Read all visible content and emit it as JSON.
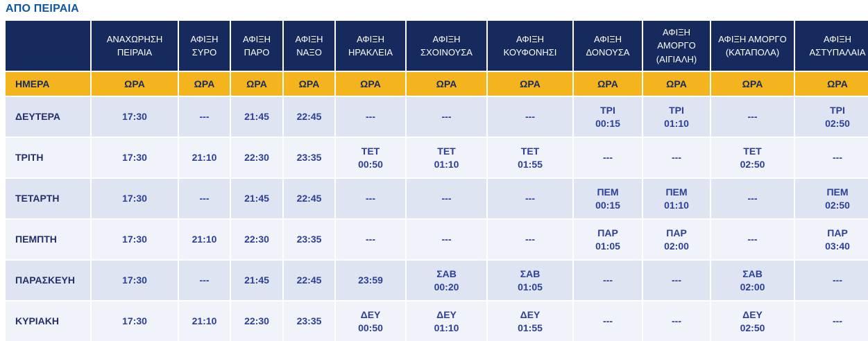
{
  "page": {
    "title": "ΑΠΟ ΠΕΙΡΑΙΑ"
  },
  "table": {
    "header": {
      "day_column_label": "ΗΜΕΡΑ",
      "time_label": "ΩΡΑ",
      "columns": [
        "ΑΝΑΧΩΡΗΣΗ ΠΕΙΡΑΙΑ",
        "ΑΦΙΞΗ ΣΥΡΟ",
        "ΑΦΙΞΗ ΠΑΡΟ",
        "ΑΦΙΞΗ ΝΑΞΟ",
        "ΑΦΙΞΗ ΗΡΑΚΛΕΙΑ",
        "ΑΦΙΞΗ ΣΧΟΙΝΟΥΣΑ",
        "ΑΦΙΞΗ ΚΟΥΦΟΝΗΣΙ",
        "ΑΦΙΞΗ ΔΟΝΟΥΣΑ",
        "ΑΦΙΞΗ ΑΜΟΡΓΟ (ΑΙΓΙΑΛΗ)",
        "ΑΦΙΞΗ ΑΜΟΡΓΟ (ΚΑΤΑΠΟΛΑ)",
        "ΑΦΙΞΗ ΑΣΤΥΠΑΛΑΙΑ"
      ]
    },
    "empty_value": "---",
    "rows": [
      {
        "day": "ΔΕΥΤΕΡΑ",
        "cells": [
          {
            "time": "17:30"
          },
          {
            "time": "---"
          },
          {
            "time": "21:45"
          },
          {
            "time": "22:45"
          },
          {
            "time": "---"
          },
          {
            "time": "---"
          },
          {
            "time": "---"
          },
          {
            "day": "ΤΡΙ",
            "time": "00:15"
          },
          {
            "day": "ΤΡΙ",
            "time": "01:10"
          },
          {
            "time": "---"
          },
          {
            "day": "ΤΡΙ",
            "time": "02:50"
          }
        ]
      },
      {
        "day": "ΤΡΙΤΗ",
        "cells": [
          {
            "time": "17:30"
          },
          {
            "time": "21:10"
          },
          {
            "time": "22:30"
          },
          {
            "time": "23:35"
          },
          {
            "day": "ΤΕΤ",
            "time": "00:50"
          },
          {
            "day": "ΤΕΤ",
            "time": "01:10"
          },
          {
            "day": "ΤΕΤ",
            "time": "01:55"
          },
          {
            "time": "---"
          },
          {
            "time": "---"
          },
          {
            "day": "ΤΕΤ",
            "time": "02:50"
          },
          {
            "time": "---"
          }
        ]
      },
      {
        "day": "ΤΕΤΑΡΤΗ",
        "cells": [
          {
            "time": "17:30"
          },
          {
            "time": "---"
          },
          {
            "time": "21:45"
          },
          {
            "time": "22:45"
          },
          {
            "time": "---"
          },
          {
            "time": "---"
          },
          {
            "time": "---"
          },
          {
            "day": "ΠΕΜ",
            "time": "00:15"
          },
          {
            "day": "ΠΕΜ",
            "time": "01:10"
          },
          {
            "time": "---"
          },
          {
            "day": "ΠΕΜ",
            "time": "02:50"
          }
        ]
      },
      {
        "day": "ΠΕΜΠΤΗ",
        "cells": [
          {
            "time": "17:30"
          },
          {
            "time": "21:10"
          },
          {
            "time": "22:30"
          },
          {
            "time": "23:35"
          },
          {
            "time": "---"
          },
          {
            "time": "---"
          },
          {
            "time": "---"
          },
          {
            "day": "ΠΑΡ",
            "time": "01:05"
          },
          {
            "day": "ΠΑΡ",
            "time": "02:00"
          },
          {
            "time": "---"
          },
          {
            "day": "ΠΑΡ",
            "time": "03:40"
          }
        ]
      },
      {
        "day": "ΠΑΡΑΣΚΕΥΗ",
        "cells": [
          {
            "time": "17:30"
          },
          {
            "time": "---"
          },
          {
            "time": "21:45"
          },
          {
            "time": "22:45"
          },
          {
            "time": "23:59"
          },
          {
            "day": "ΣΑΒ",
            "time": "00:20"
          },
          {
            "day": "ΣΑΒ",
            "time": "01:05"
          },
          {
            "time": "---"
          },
          {
            "time": "---"
          },
          {
            "day": "ΣΑΒ",
            "time": "02:00"
          },
          {
            "time": "---"
          }
        ]
      },
      {
        "day": "ΚΥΡΙΑΚΗ",
        "cells": [
          {
            "time": "17:30"
          },
          {
            "time": "21:10"
          },
          {
            "time": "22:30"
          },
          {
            "time": "23:35"
          },
          {
            "day": "ΔΕΥ",
            "time": "00:50"
          },
          {
            "day": "ΔΕΥ",
            "time": "01:10"
          },
          {
            "day": "ΔΕΥ",
            "time": "01:55"
          },
          {
            "time": "---"
          },
          {
            "time": "---"
          },
          {
            "day": "ΔΕΥ",
            "time": "02:50"
          },
          {
            "time": "---"
          }
        ]
      }
    ]
  }
}
